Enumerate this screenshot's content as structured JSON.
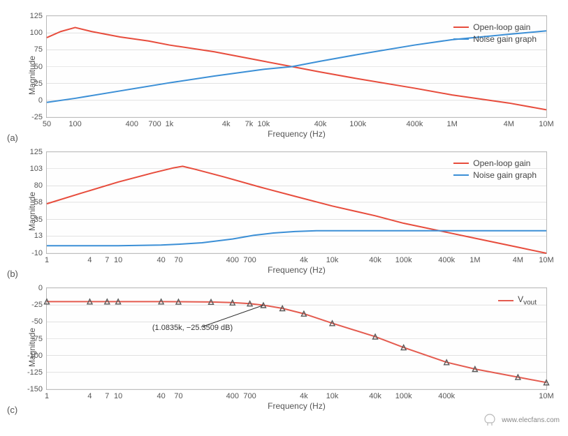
{
  "colors": {
    "openLoop": "#e74c3c",
    "noiseGain": "#3b8fd6",
    "vout": "#e45b4f",
    "marker": "#5a5a5a",
    "grid": "#d0d0d0",
    "border": "#b8b8b8",
    "background": "#ffffff",
    "text": "#444444",
    "annotationLine": "#2b2b2b"
  },
  "typography": {
    "axisLabelFontSize": 12,
    "tickFontSize": 11,
    "legendFontSize": 12,
    "panelLabelFontSize": 13,
    "annotationFontSize": 11,
    "fontFamily": "sans-serif"
  },
  "panels": [
    {
      "id": "a",
      "type": "line",
      "label": "(a)",
      "xlabel": "Frequency (Hz)",
      "ylabel": "Magnitude",
      "xscale": "log",
      "xlim": [
        50,
        10000000
      ],
      "ylim": [
        -25,
        125
      ],
      "yticks": [
        -25,
        0,
        25,
        50,
        75,
        100,
        125
      ],
      "xticks": [
        50,
        100,
        400,
        700,
        1000,
        4000,
        7000,
        10000,
        40000,
        100000,
        400000,
        1000000,
        4000000,
        10000000
      ],
      "xtickLabels": [
        "50",
        "100",
        "400",
        "700",
        "1k",
        "4k",
        "7k",
        "10k",
        "40k",
        "100k",
        "400k",
        "1M",
        "4M",
        "10M"
      ],
      "grid": true,
      "legendPosition": "top-right",
      "series": [
        {
          "name": "Open-loop gain",
          "colorKey": "openLoop",
          "lineWidth": 2,
          "markers": false,
          "data": [
            [
              50,
              93
            ],
            [
              70,
              102
            ],
            [
              100,
              108
            ],
            [
              150,
              102
            ],
            [
              300,
              94
            ],
            [
              600,
              88
            ],
            [
              1000,
              82
            ],
            [
              3000,
              72
            ],
            [
              10000,
              58
            ],
            [
              20000,
              50
            ],
            [
              40000,
              42
            ],
            [
              100000,
              32
            ],
            [
              400000,
              18
            ],
            [
              1000000,
              8
            ],
            [
              4000000,
              -4
            ],
            [
              10000000,
              -14
            ]
          ]
        },
        {
          "name": "Noise gain graph",
          "colorKey": "noiseGain",
          "lineWidth": 2,
          "markers": false,
          "data": [
            [
              50,
              -3
            ],
            [
              100,
              3
            ],
            [
              300,
              14
            ],
            [
              1000,
              26
            ],
            [
              3000,
              36
            ],
            [
              10000,
              46
            ],
            [
              20000,
              50
            ],
            [
              40000,
              58
            ],
            [
              100000,
              68
            ],
            [
              400000,
              82
            ],
            [
              1000000,
              90
            ],
            [
              4000000,
              98
            ],
            [
              10000000,
              103
            ]
          ]
        }
      ]
    },
    {
      "id": "b",
      "type": "line",
      "label": "(b)",
      "xlabel": "Frequency (Hz)",
      "ylabel": "Magnitude",
      "xscale": "log",
      "xlim": [
        1,
        10000000
      ],
      "ylim": [
        -10,
        125
      ],
      "yticks": [
        -10,
        13,
        35,
        58,
        80,
        103,
        125
      ],
      "xticks": [
        1,
        4,
        7,
        10,
        40,
        70,
        100,
        400,
        700,
        1000,
        4000,
        10000,
        40000,
        100000,
        400000,
        1000000,
        4000000,
        10000000
      ],
      "xtickLabels": [
        "1",
        "4",
        "7",
        "10",
        "40",
        "70",
        "",
        "400",
        "700",
        "",
        "4k",
        "10k",
        "40k",
        "100k",
        "400k",
        "1M",
        "4M",
        "10M"
      ],
      "grid": true,
      "legendPosition": "top-right",
      "series": [
        {
          "name": "Open-loop gain",
          "colorKey": "openLoop",
          "lineWidth": 2,
          "markers": false,
          "data": [
            [
              1,
              56
            ],
            [
              3,
              70
            ],
            [
              10,
              85
            ],
            [
              30,
              97
            ],
            [
              60,
              104
            ],
            [
              80,
              106
            ],
            [
              120,
              102
            ],
            [
              300,
              92
            ],
            [
              1000,
              78
            ],
            [
              3000,
              66
            ],
            [
              10000,
              53
            ],
            [
              40000,
              40
            ],
            [
              100000,
              30
            ],
            [
              400000,
              18
            ],
            [
              1000000,
              10
            ],
            [
              4000000,
              -2
            ],
            [
              10000000,
              -10
            ]
          ]
        },
        {
          "name": "Noise gain graph",
          "colorKey": "noiseGain",
          "lineWidth": 2,
          "markers": false,
          "data": [
            [
              1,
              0
            ],
            [
              4,
              0
            ],
            [
              10,
              0
            ],
            [
              40,
              1
            ],
            [
              70,
              2
            ],
            [
              150,
              4
            ],
            [
              400,
              9
            ],
            [
              800,
              14
            ],
            [
              1500,
              17
            ],
            [
              3000,
              19
            ],
            [
              6000,
              20
            ],
            [
              10000,
              20
            ],
            [
              40000,
              20
            ],
            [
              100000,
              20
            ],
            [
              400000,
              20
            ],
            [
              1000000,
              20
            ],
            [
              4000000,
              20
            ],
            [
              10000000,
              20
            ]
          ]
        }
      ]
    },
    {
      "id": "c",
      "type": "line",
      "label": "(c)",
      "xlabel": "Frequency (Hz)",
      "ylabel": "Magnitude",
      "xscale": "log",
      "xlim": [
        1,
        10000000
      ],
      "ylim": [
        -150,
        0
      ],
      "yticks": [
        -150,
        -125,
        -100,
        -75,
        -50,
        -25,
        0
      ],
      "xticks": [
        1,
        4,
        7,
        10,
        40,
        70,
        100,
        400,
        700,
        1000,
        4000,
        10000,
        40000,
        100000,
        400000,
        1000000,
        4000000,
        10000000
      ],
      "xtickLabels": [
        "1",
        "4",
        "7",
        "10",
        "40",
        "70",
        "",
        "400",
        "700",
        "",
        "4k",
        "10k",
        "40k",
        "100k",
        "400k",
        "",
        "",
        "10M"
      ],
      "grid": true,
      "legendPosition": "top-right",
      "series": [
        {
          "name": "Vvout",
          "colorKey": "vout",
          "lineWidth": 2,
          "markers": true,
          "markerShape": "triangle",
          "markerSize": 7,
          "markerColorKey": "marker",
          "data": [
            [
              1,
              -20
            ],
            [
              4,
              -20
            ],
            [
              7,
              -20
            ],
            [
              10,
              -20
            ],
            [
              40,
              -20
            ],
            [
              70,
              -20.2
            ],
            [
              200,
              -20.5
            ],
            [
              400,
              -21.5
            ],
            [
              700,
              -23
            ],
            [
              1083.5,
              -25.3509
            ],
            [
              2000,
              -30
            ],
            [
              4000,
              -38
            ],
            [
              10000,
              -52
            ],
            [
              40000,
              -72
            ],
            [
              100000,
              -88
            ],
            [
              400000,
              -110
            ],
            [
              1000000,
              -120
            ],
            [
              4000000,
              -132
            ],
            [
              10000000,
              -140
            ]
          ]
        }
      ],
      "annotation": {
        "text": "(1.0835k, −25.3509 dB)",
        "pointX": 1083.5,
        "pointY": -25.3509,
        "labelX": 30,
        "labelY": -62
      }
    }
  ],
  "watermark": {
    "url": "www.elecfans.com",
    "iconColor": "#777777"
  }
}
